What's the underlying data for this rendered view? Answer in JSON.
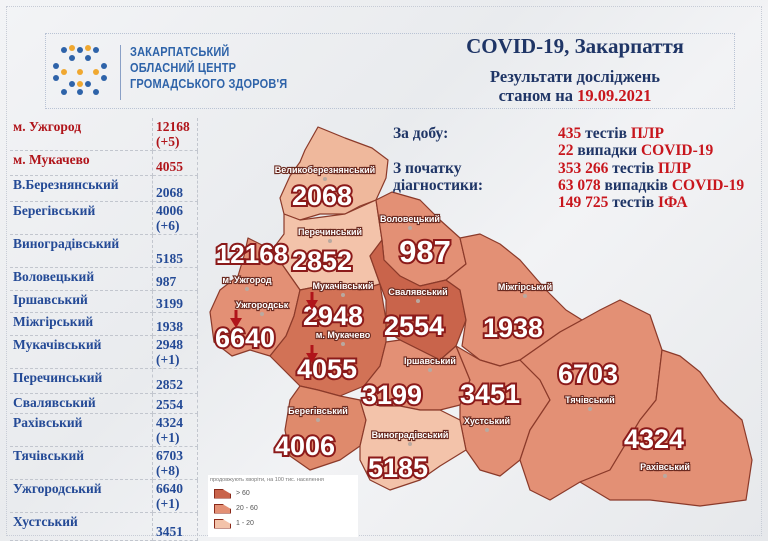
{
  "header": {
    "org_name": [
      "ЗАКАРПАТСЬКИЙ",
      "ОБЛАСНИЙ ЦЕНТР",
      "ГРОМАДСЬКОГО ЗДОРОВ'Я"
    ],
    "title": "COVID-19, Закарпаття",
    "subtitle_line1": "Результати досліджень",
    "subtitle_prefix": "станом на",
    "date": "19.09.2021"
  },
  "stats": {
    "daily_label": "За добу:",
    "total_label_1": "З початку",
    "total_label_2": "діагностики:",
    "lines": [
      {
        "num": "435",
        "mid": "тестів",
        "kind": "ПЛР"
      },
      {
        "num": "22",
        "mid": "випадки",
        "kind": "COVID-19"
      },
      {
        "num": "353 266",
        "mid": "тестів",
        "kind": "ПЛР"
      },
      {
        "num": "63 078",
        "mid": "випадків",
        "kind": "COVID-19"
      },
      {
        "num": "149 725",
        "mid": "тестів",
        "kind": "ІФА"
      }
    ]
  },
  "table": [
    {
      "name": "м. Ужгород",
      "value": "12168",
      "delta": "(+5)",
      "city": true
    },
    {
      "name": "м. Мукачево",
      "value": "4055",
      "delta": "",
      "city": true
    },
    {
      "name": "В.Березнянський",
      "value": "2068",
      "delta": ""
    },
    {
      "name": "Берегівський",
      "value": "4006",
      "delta": "(+6)"
    },
    {
      "name": "Виноградівський",
      "value": "5185",
      "delta": ""
    },
    {
      "name": "Воловецький",
      "value": "987",
      "delta": ""
    },
    {
      "name": "Іршавський",
      "value": "3199",
      "delta": ""
    },
    {
      "name": "Міжгірський",
      "value": "1938",
      "delta": ""
    },
    {
      "name": "Мукачівський",
      "value": "2948",
      "delta": "(+1)"
    },
    {
      "name": "Перечинський",
      "value": "2852",
      "delta": ""
    },
    {
      "name": "Свалявський",
      "value": "2554",
      "delta": ""
    },
    {
      "name": "Рахівський",
      "value": "4324",
      "delta": "(+1)"
    },
    {
      "name": "Тячівський",
      "value": "6703",
      "delta": "(+8)"
    },
    {
      "name": "Ужгородський",
      "value": "6640",
      "delta": "(+1)"
    },
    {
      "name": "Хустський",
      "value": "3451",
      "delta": ""
    }
  ],
  "map": {
    "labels": {
      "velykobereznianskyi": "Великоберезнянський",
      "perechynskyi": "Перечинський",
      "volovetskyi": "Воловецький",
      "uzhhorod_city": "м. Ужгород",
      "mukachivskyi": "Мукачівський",
      "svaliavskyi": "Свалявський",
      "mizhhirskyi": "Міжгірський",
      "uzhhorodskyi": "Ужгородськ",
      "mukachevo_city": "м. Мукачево",
      "irshavskyi": "Іршавський",
      "tiachivskyi": "Тячівський",
      "khustskyi": "Хустський",
      "berehivskyi": "Берегівський",
      "vynohradivskyi": "Виноградівський",
      "rakhivskyi": "Рахівський"
    },
    "numbers": {
      "velykobereznianskyi": "2068",
      "uzhhorod_city": "12168",
      "perechynskyi": "2852",
      "volovetskyi": "987",
      "mukachivskyi": "2948",
      "svaliavskyi": "2554",
      "mizhhirskyi": "1938",
      "uzhhorodskyi": "6640",
      "mukachevo_city": "4055",
      "tiachivskyi": "6703",
      "irshavskyi": "3199",
      "khustskyi": "3451",
      "berehivskyi": "4006",
      "rakhivskyi": "4324",
      "vynohradivskyi": "5185"
    },
    "colors": {
      "high": "#c9644b",
      "mid": "#e39075",
      "low": "#f3c3aa",
      "border": "#8b3a2a",
      "number_stroke": "#8b1a1a"
    }
  },
  "legend": {
    "title": "продовжують хворіти, на 100 тис. населення",
    "items": [
      {
        "label": "> 60",
        "color": "#c9644b"
      },
      {
        "label": "20 - 60",
        "color": "#e39075"
      },
      {
        "label": "1 - 20",
        "color": "#f3c3aa"
      }
    ]
  }
}
